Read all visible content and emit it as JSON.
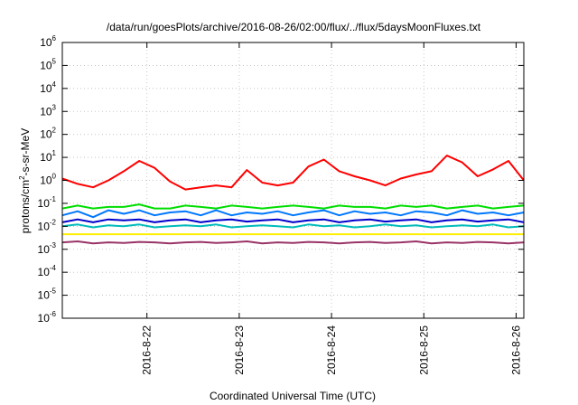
{
  "chart_data": {
    "type": "line",
    "title": "/data/run/goesPlots/archive/2016-08-26/02:00/flux/../flux/5daysMoonFluxes.txt",
    "xlabel": "Coordinated Universal Time (UTC)",
    "ylabel": {
      "prefix": "protons/cm",
      "sup": "2",
      "suffix": "-s-sr-MeV"
    },
    "y_scale": "log",
    "ylim": [
      1e-06,
      1000000.0
    ],
    "y_ticks": [
      {
        "value": 1e-06,
        "base": "10",
        "exp": "-6"
      },
      {
        "value": 1e-05,
        "base": "10",
        "exp": "-5"
      },
      {
        "value": 0.0001,
        "base": "10",
        "exp": "-4"
      },
      {
        "value": 0.001,
        "base": "10",
        "exp": "-3"
      },
      {
        "value": 0.01,
        "base": "10",
        "exp": "-2"
      },
      {
        "value": 0.1,
        "base": "10",
        "exp": "-1"
      },
      {
        "value": 1.0,
        "base": "10",
        "exp": "0"
      },
      {
        "value": 10.0,
        "base": "10",
        "exp": "1"
      },
      {
        "value": 100.0,
        "base": "10",
        "exp": "2"
      },
      {
        "value": 1000.0,
        "base": "10",
        "exp": "3"
      },
      {
        "value": 10000.0,
        "base": "10",
        "exp": "4"
      },
      {
        "value": 100000.0,
        "base": "10",
        "exp": "5"
      },
      {
        "value": 1000000.0,
        "base": "10",
        "exp": "6"
      }
    ],
    "xlim": [
      "2016-08-21T02:00",
      "2016-08-26T02:00"
    ],
    "x_ticks": [
      {
        "value": "2016-08-22T00:00",
        "label": "2016-8-22"
      },
      {
        "value": "2016-08-23T00:00",
        "label": "2016-8-23"
      },
      {
        "value": "2016-08-24T00:00",
        "label": "2016-8-24"
      },
      {
        "value": "2016-08-25T00:00",
        "label": "2016-8-25"
      },
      {
        "value": "2016-08-26T00:00",
        "label": "2016-8-26"
      }
    ],
    "grid": true,
    "x": [
      "2016-08-21T02:00",
      "2016-08-21T06:00",
      "2016-08-21T10:00",
      "2016-08-21T14:00",
      "2016-08-21T18:00",
      "2016-08-21T22:00",
      "2016-08-22T02:00",
      "2016-08-22T06:00",
      "2016-08-22T10:00",
      "2016-08-22T14:00",
      "2016-08-22T18:00",
      "2016-08-22T22:00",
      "2016-08-23T02:00",
      "2016-08-23T06:00",
      "2016-08-23T10:00",
      "2016-08-23T14:00",
      "2016-08-23T18:00",
      "2016-08-23T22:00",
      "2016-08-24T02:00",
      "2016-08-24T06:00",
      "2016-08-24T10:00",
      "2016-08-24T14:00",
      "2016-08-24T18:00",
      "2016-08-24T22:00",
      "2016-08-25T02:00",
      "2016-08-25T06:00",
      "2016-08-25T10:00",
      "2016-08-25T14:00",
      "2016-08-25T18:00",
      "2016-08-25T22:00",
      "2016-08-26T02:00"
    ],
    "series": [
      {
        "color": "#ff0000",
        "values": [
          1.2,
          0.7,
          0.5,
          1.0,
          2.5,
          7.0,
          3.5,
          0.9,
          0.4,
          0.5,
          0.6,
          0.5,
          2.8,
          0.8,
          0.6,
          0.8,
          4.0,
          8.0,
          2.5,
          1.5,
          1.0,
          0.6,
          1.2,
          1.8,
          2.5,
          12.0,
          6.0,
          1.5,
          3.0,
          7.0,
          1.0
        ]
      },
      {
        "color": "#00dd00",
        "values": [
          0.06,
          0.08,
          0.06,
          0.07,
          0.07,
          0.09,
          0.06,
          0.06,
          0.08,
          0.07,
          0.06,
          0.08,
          0.07,
          0.06,
          0.07,
          0.08,
          0.07,
          0.06,
          0.08,
          0.07,
          0.07,
          0.06,
          0.08,
          0.07,
          0.08,
          0.06,
          0.07,
          0.08,
          0.06,
          0.07,
          0.08
        ]
      },
      {
        "color": "#0077ff",
        "values": [
          0.03,
          0.045,
          0.025,
          0.05,
          0.035,
          0.05,
          0.03,
          0.04,
          0.045,
          0.03,
          0.05,
          0.03,
          0.04,
          0.035,
          0.045,
          0.03,
          0.04,
          0.05,
          0.03,
          0.045,
          0.035,
          0.04,
          0.03,
          0.045,
          0.04,
          0.03,
          0.05,
          0.035,
          0.04,
          0.03,
          0.04
        ]
      },
      {
        "color": "#0000cc",
        "values": [
          0.015,
          0.02,
          0.015,
          0.02,
          0.018,
          0.02,
          0.015,
          0.018,
          0.02,
          0.015,
          0.018,
          0.02,
          0.016,
          0.018,
          0.02,
          0.015,
          0.018,
          0.02,
          0.015,
          0.018,
          0.02,
          0.016,
          0.018,
          0.02,
          0.015,
          0.018,
          0.02,
          0.016,
          0.018,
          0.02,
          0.015
        ]
      },
      {
        "color": "#00bbbb",
        "values": [
          0.01,
          0.012,
          0.009,
          0.011,
          0.01,
          0.012,
          0.009,
          0.01,
          0.011,
          0.01,
          0.012,
          0.009,
          0.01,
          0.011,
          0.01,
          0.009,
          0.012,
          0.01,
          0.011,
          0.009,
          0.01,
          0.012,
          0.01,
          0.011,
          0.009,
          0.01,
          0.011,
          0.01,
          0.012,
          0.009,
          0.01
        ]
      },
      {
        "color": "#ffee00",
        "values": [
          0.0045,
          0.0045,
          0.0045,
          0.0045,
          0.0045,
          0.0045,
          0.0045,
          0.0045,
          0.0045,
          0.0045,
          0.0045,
          0.0045,
          0.0045,
          0.0045,
          0.0045,
          0.0045,
          0.0045,
          0.0045,
          0.0045,
          0.0045,
          0.0045,
          0.0045,
          0.0045,
          0.0045,
          0.0045,
          0.0045,
          0.0045,
          0.0045,
          0.0045,
          0.0045,
          0.0045
        ]
      },
      {
        "color": "#993366",
        "values": [
          0.002,
          0.0022,
          0.0018,
          0.002,
          0.0019,
          0.0021,
          0.002,
          0.0018,
          0.002,
          0.0021,
          0.0019,
          0.002,
          0.0022,
          0.0018,
          0.002,
          0.0019,
          0.0021,
          0.002,
          0.0018,
          0.002,
          0.0021,
          0.0019,
          0.002,
          0.0022,
          0.0018,
          0.002,
          0.0019,
          0.0021,
          0.002,
          0.0018,
          0.002
        ]
      }
    ]
  }
}
